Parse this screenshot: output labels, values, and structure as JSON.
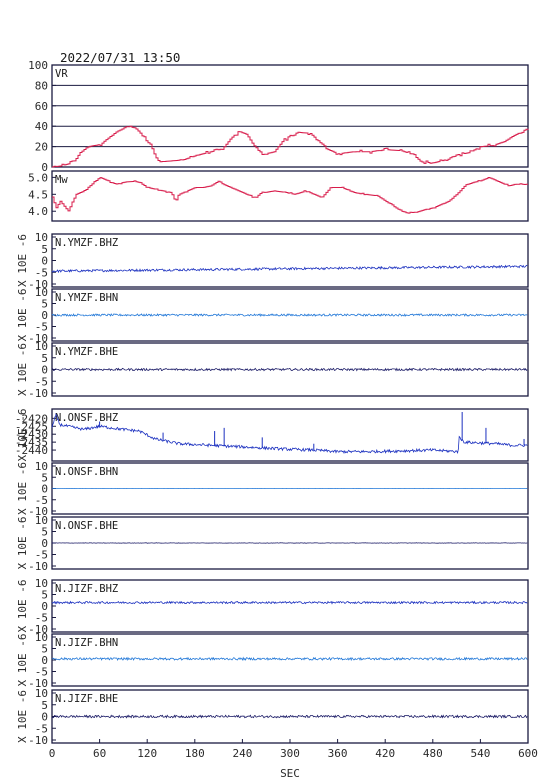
{
  "title": "2022/07/31 13:50",
  "chart_data": {
    "type": "line",
    "title": "2022/07/31 13:50",
    "xlabel": "SEC",
    "xlim": [
      0,
      600
    ],
    "xticks": [
      0,
      60,
      120,
      180,
      240,
      300,
      360,
      420,
      480,
      540,
      600
    ],
    "panels": [
      {
        "name": "VR",
        "ylim": [
          0,
          100
        ],
        "yticks": [
          0,
          20,
          40,
          60,
          80,
          100
        ],
        "grid": true,
        "color": "#d81b4a",
        "style": "step",
        "points": [
          [
            0,
            0
          ],
          [
            10,
            1
          ],
          [
            20,
            3
          ],
          [
            30,
            8
          ],
          [
            35,
            14
          ],
          [
            45,
            20
          ],
          [
            60,
            22
          ],
          [
            70,
            28
          ],
          [
            80,
            34
          ],
          [
            90,
            38
          ],
          [
            98,
            40
          ],
          [
            105,
            38
          ],
          [
            115,
            30
          ],
          [
            125,
            20
          ],
          [
            130,
            10
          ],
          [
            135,
            5
          ],
          [
            150,
            6
          ],
          [
            165,
            7
          ],
          [
            180,
            11
          ],
          [
            200,
            15
          ],
          [
            215,
            18
          ],
          [
            225,
            28
          ],
          [
            235,
            35
          ],
          [
            245,
            32
          ],
          [
            255,
            20
          ],
          [
            265,
            12
          ],
          [
            280,
            15
          ],
          [
            290,
            25
          ],
          [
            300,
            31
          ],
          [
            310,
            34
          ],
          [
            325,
            33
          ],
          [
            335,
            26
          ],
          [
            345,
            18
          ],
          [
            360,
            13
          ],
          [
            380,
            15
          ],
          [
            400,
            15
          ],
          [
            420,
            17
          ],
          [
            440,
            16
          ],
          [
            455,
            12
          ],
          [
            465,
            5
          ],
          [
            480,
            4
          ],
          [
            495,
            7
          ],
          [
            510,
            12
          ],
          [
            525,
            14
          ],
          [
            540,
            20
          ],
          [
            555,
            21
          ],
          [
            570,
            25
          ],
          [
            580,
            30
          ],
          [
            590,
            34
          ],
          [
            600,
            38
          ]
        ]
      },
      {
        "name": "Mw",
        "ylim": [
          3.8,
          5.1
        ],
        "yticks": [
          4.0,
          4.5,
          5.0
        ],
        "grid": false,
        "color": "#d81b4a",
        "style": "step",
        "points": [
          [
            0,
            4.4
          ],
          [
            5,
            4.1
          ],
          [
            10,
            4.3
          ],
          [
            20,
            4.0
          ],
          [
            30,
            4.5
          ],
          [
            40,
            4.6
          ],
          [
            50,
            4.8
          ],
          [
            60,
            5.0
          ],
          [
            70,
            4.9
          ],
          [
            80,
            4.8
          ],
          [
            90,
            4.85
          ],
          [
            100,
            4.9
          ],
          [
            110,
            4.85
          ],
          [
            120,
            4.7
          ],
          [
            130,
            4.65
          ],
          [
            140,
            4.6
          ],
          [
            150,
            4.55
          ],
          [
            155,
            4.3
          ],
          [
            160,
            4.5
          ],
          [
            170,
            4.6
          ],
          [
            180,
            4.7
          ],
          [
            190,
            4.7
          ],
          [
            200,
            4.75
          ],
          [
            210,
            4.9
          ],
          [
            215,
            4.8
          ],
          [
            225,
            4.7
          ],
          [
            240,
            4.55
          ],
          [
            255,
            4.4
          ],
          [
            265,
            4.55
          ],
          [
            280,
            4.6
          ],
          [
            295,
            4.55
          ],
          [
            305,
            4.5
          ],
          [
            320,
            4.6
          ],
          [
            340,
            4.4
          ],
          [
            350,
            4.7
          ],
          [
            365,
            4.7
          ],
          [
            380,
            4.55
          ],
          [
            395,
            4.5
          ],
          [
            410,
            4.45
          ],
          [
            420,
            4.3
          ],
          [
            430,
            4.15
          ],
          [
            440,
            4.0
          ],
          [
            450,
            3.95
          ],
          [
            460,
            3.98
          ],
          [
            470,
            4.05
          ],
          [
            480,
            4.1
          ],
          [
            490,
            4.2
          ],
          [
            500,
            4.3
          ],
          [
            510,
            4.5
          ],
          [
            520,
            4.75
          ],
          [
            530,
            4.85
          ],
          [
            540,
            4.9
          ],
          [
            550,
            5.0
          ],
          [
            560,
            4.9
          ],
          [
            575,
            4.75
          ],
          [
            585,
            4.8
          ],
          [
            600,
            4.8
          ]
        ]
      },
      {
        "name": "N.YMZF.BHZ",
        "ylabel": "X 10E -6",
        "ylim": [
          -10,
          10
        ],
        "yticks": [
          -10,
          -5,
          0,
          5,
          10
        ],
        "color": "#1a2fbf",
        "baseline_start": -4.5,
        "baseline_end": -2.5,
        "noise": 0.5
      },
      {
        "name": "N.YMZF.BHN",
        "ylabel": "X 10E -6",
        "ylim": [
          -10,
          10
        ],
        "yticks": [
          -10,
          -5,
          0,
          5,
          10
        ],
        "color": "#2278d8",
        "baseline_start": 0,
        "baseline_end": 0,
        "noise": 0.45
      },
      {
        "name": "N.YMZF.BHE",
        "ylabel": "X 10E -6",
        "ylim": [
          -10,
          10
        ],
        "yticks": [
          -10,
          -5,
          0,
          5,
          10
        ],
        "color": "#1a1a66",
        "baseline_start": 0,
        "baseline_end": 0,
        "noise": 0.45
      },
      {
        "name": "N.ONSF.BHZ",
        "ylabel": "X 10E -6",
        "ylim": [
          -2445,
          -2416
        ],
        "yticks": [
          -2420,
          -2425,
          -2430,
          -2435,
          -2440
        ],
        "color": "#1a2fbf",
        "style": "noisy-trend",
        "trend": [
          [
            0,
            -2426
          ],
          [
            5,
            -2418
          ],
          [
            10,
            -2424
          ],
          [
            40,
            -2427
          ],
          [
            60,
            -2425
          ],
          [
            90,
            -2427
          ],
          [
            110,
            -2428
          ],
          [
            130,
            -2433
          ],
          [
            160,
            -2436
          ],
          [
            200,
            -2437
          ],
          [
            240,
            -2438
          ],
          [
            280,
            -2439
          ],
          [
            300,
            -2439.5
          ],
          [
            330,
            -2440
          ],
          [
            360,
            -2441
          ],
          [
            400,
            -2441
          ],
          [
            440,
            -2440.5
          ],
          [
            480,
            -2440
          ],
          [
            512,
            -2441
          ],
          [
            513,
            -2432
          ],
          [
            520,
            -2435
          ],
          [
            560,
            -2436
          ],
          [
            580,
            -2437
          ],
          [
            600,
            -2437
          ]
        ],
        "noise": 0.9,
        "spikes": [
          [
            5,
            -2417
          ],
          [
            60,
            -2422
          ],
          [
            140,
            -2429
          ],
          [
            205,
            -2428
          ],
          [
            217,
            -2426
          ],
          [
            265,
            -2432
          ],
          [
            330,
            -2436
          ],
          [
            517,
            -2416
          ],
          [
            547,
            -2426
          ],
          [
            595,
            -2433
          ]
        ]
      },
      {
        "name": "N.ONSF.BHN",
        "ylabel": "X 10E -6",
        "ylim": [
          -10,
          10
        ],
        "yticks": [
          -10,
          -5,
          0,
          5,
          10
        ],
        "color": "#2278d8",
        "baseline_start": 0,
        "baseline_end": 0,
        "noise": 0.05
      },
      {
        "name": "N.ONSF.BHE",
        "ylabel": "X 10E -6",
        "ylim": [
          -10,
          10
        ],
        "yticks": [
          -10,
          -5,
          0,
          5,
          10
        ],
        "color": "#1a1a66",
        "baseline_start": 0,
        "baseline_end": 0,
        "noise": 0.08
      },
      {
        "name": "N.JIZF.BHZ",
        "ylabel": "X 10E -6",
        "ylim": [
          -10,
          10
        ],
        "yticks": [
          -10,
          -5,
          0,
          5,
          10
        ],
        "color": "#1a2fbf",
        "baseline_start": 1.5,
        "baseline_end": 1.5,
        "noise": 0.45
      },
      {
        "name": "N.JIZF.BHN",
        "ylabel": "X 10E -6",
        "ylim": [
          -10,
          10
        ],
        "yticks": [
          -10,
          -5,
          0,
          5,
          10
        ],
        "color": "#2278d8",
        "baseline_start": 0.5,
        "baseline_end": 0.5,
        "noise": 0.5
      },
      {
        "name": "N.JIZF.BHE",
        "ylabel": "X 10E -6",
        "ylim": [
          -10,
          10
        ],
        "yticks": [
          -10,
          -5,
          0,
          5,
          10
        ],
        "color": "#1a1a66",
        "baseline_start": 0,
        "baseline_end": 0,
        "noise": 0.5
      }
    ]
  }
}
